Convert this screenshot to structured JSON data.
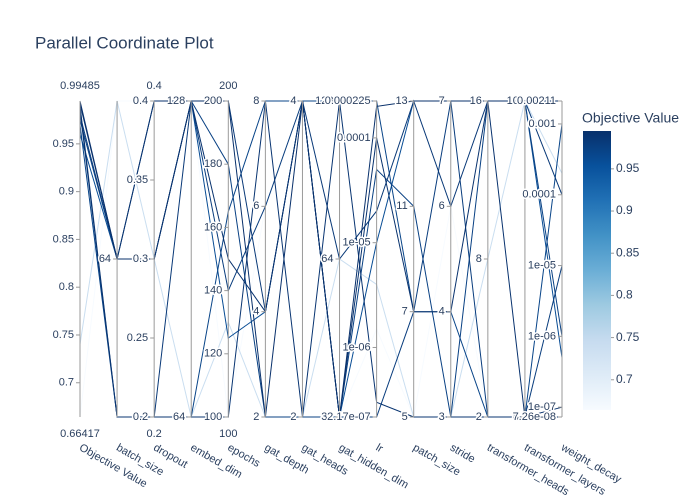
{
  "chart_data": {
    "type": "parcoords",
    "title": "Parallel Coordinate Plot",
    "colorbar": {
      "title": "Objective Value",
      "range": [
        0.66417,
        0.99485
      ],
      "ticks": [
        0.7,
        0.75,
        0.8,
        0.85,
        0.9,
        0.95
      ],
      "colorscale": [
        "#f7fbff",
        "#deebf7",
        "#c6dbef",
        "#9ecae1",
        "#6baed6",
        "#4292c6",
        "#2171b5",
        "#08519c",
        "#08306b"
      ]
    },
    "dimensions": [
      {
        "label": "Objective Value",
        "range": [
          0.66417,
          0.99485
        ],
        "show_range": true,
        "ticks": [
          0.7,
          0.75,
          0.8,
          0.85,
          0.9,
          0.95
        ],
        "values": [
          0.66417,
          0.74,
          0.96,
          0.97,
          0.975,
          0.98,
          0.985,
          0.99,
          0.992,
          0.99485
        ]
      },
      {
        "label": "batch_size",
        "range": [
          0,
          2
        ],
        "ticks": [
          {
            "value": 1,
            "label": "64"
          }
        ],
        "values": [
          2,
          2,
          1,
          0,
          1,
          1,
          0,
          0,
          1,
          1
        ]
      },
      {
        "label": "dropout",
        "range": [
          0.2,
          0.4
        ],
        "show_range": true,
        "ticks": [
          0.2,
          0.25,
          0.3,
          0.35,
          0.4
        ],
        "values": [
          0.4,
          0.3,
          0.3,
          0.2,
          0.4,
          0.3,
          0.2,
          0.2,
          0.4,
          0.3
        ]
      },
      {
        "label": "embed_dim",
        "range": [
          64,
          128
        ],
        "ticks": [
          64,
          128
        ],
        "values": [
          128,
          64,
          128,
          64,
          128,
          128,
          128,
          64,
          128,
          128
        ]
      },
      {
        "label": "epochs",
        "range": [
          100,
          200
        ],
        "show_range": true,
        "ticks": [
          100,
          120,
          140,
          160,
          180,
          200
        ],
        "values": [
          100,
          130,
          125,
          165,
          180,
          140,
          200,
          100,
          150,
          200
        ]
      },
      {
        "label": "gat_depth",
        "range": [
          2,
          8
        ],
        "ticks": [
          2,
          4,
          6,
          8
        ],
        "values": [
          6,
          2,
          4,
          8,
          2,
          6,
          4,
          8,
          4,
          2
        ]
      },
      {
        "label": "gat_heads",
        "range": [
          2,
          4
        ],
        "ticks": [
          2,
          4
        ],
        "values": [
          4,
          2,
          4,
          4,
          2,
          4,
          4,
          2,
          4,
          4
        ]
      },
      {
        "label": "gat_hidden_dim",
        "range": [
          0,
          2
        ],
        "ticks": [
          {
            "value": 0,
            "label": "32"
          },
          {
            "value": 1,
            "label": "64"
          },
          {
            "value": 2,
            "label": "128"
          }
        ],
        "values": [
          0,
          1,
          0,
          2,
          0,
          0,
          1,
          2,
          0,
          0
        ]
      },
      {
        "label": "lr",
        "range": [
          2.17e-07,
          0.000225
        ],
        "log": true,
        "ticks": [
          {
            "value": 2.17e-07,
            "label": "2.17e-07"
          },
          {
            "value": 1e-06,
            "label": "1e-06"
          },
          {
            "value": 1e-05,
            "label": "1e-05"
          },
          0.0001,
          0.000225
        ],
        "values": [
          1.5e-06,
          4e-06,
          1e-05,
          0.000225,
          5e-05,
          2.17e-07,
          2e-05,
          3e-07,
          0.0001,
          0.0002
        ]
      },
      {
        "label": "patch_size",
        "range": [
          0,
          3
        ],
        "ticks": [
          {
            "value": 0,
            "label": "5"
          },
          {
            "value": 1,
            "label": "7"
          },
          {
            "value": 2,
            "label": "11"
          },
          {
            "value": 3,
            "label": "13"
          }
        ],
        "values": [
          0,
          0,
          3,
          1,
          2,
          1,
          3,
          0,
          1,
          3
        ]
      },
      {
        "label": "stride",
        "range": [
          0,
          3
        ],
        "ticks": [
          {
            "value": 0,
            "label": "3"
          },
          {
            "value": 1,
            "label": "4"
          },
          {
            "value": 2,
            "label": "6"
          },
          {
            "value": 3,
            "label": "7"
          }
        ],
        "values": [
          2,
          0,
          3,
          1,
          0,
          3,
          2,
          0,
          1,
          3
        ]
      },
      {
        "label": "transformer_heads",
        "range": [
          0,
          2
        ],
        "ticks": [
          {
            "value": 0,
            "label": "2"
          },
          {
            "value": 1,
            "label": "8"
          },
          {
            "value": 2,
            "label": "16"
          }
        ],
        "values": [
          0,
          1,
          2,
          0,
          2,
          0,
          2,
          0,
          2,
          2
        ]
      },
      {
        "label": "transformer_layers",
        "range": [
          8,
          10
        ],
        "ticks": [
          8,
          10
        ],
        "values": [
          8,
          10,
          10,
          8,
          10,
          8,
          10,
          8,
          8,
          10
        ]
      },
      {
        "label": "weight_decay",
        "range": [
          7.26e-08,
          0.00211
        ],
        "log": true,
        "ticks": [
          {
            "value": 7.26e-08,
            "label": "7.26e-08"
          },
          {
            "value": 1e-07,
            "label": "1e-07"
          },
          {
            "value": 1e-06,
            "label": "1e-06"
          },
          {
            "value": 1e-05,
            "label": "1e-05"
          },
          0.0001,
          0.001,
          0.00211
        ],
        "values": [
          0.001,
          0.0002,
          5e-07,
          0.001,
          1e-06,
          1e-05,
          0.0001,
          7.26e-08,
          1e-07,
          0.00211
        ]
      }
    ]
  }
}
